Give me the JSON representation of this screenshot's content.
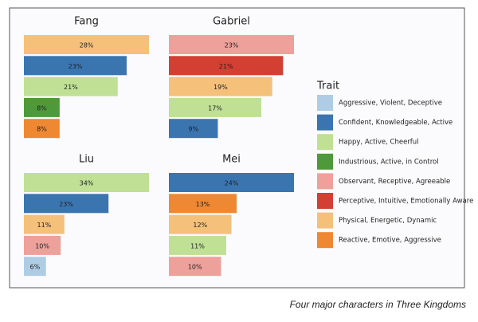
{
  "chart_data": [
    {
      "type": "bar",
      "orientation": "horizontal",
      "title": "Fang",
      "values": [
        28,
        23,
        21,
        8,
        8
      ],
      "value_labels": [
        "28%",
        "23%",
        "21%",
        "8%",
        "8%"
      ],
      "colors": [
        "#f4c07a",
        "#3a75b0",
        "#bfe095",
        "#4e9a3a",
        "#ee8833"
      ]
    },
    {
      "type": "bar",
      "orientation": "horizontal",
      "title": "Gabriel",
      "values": [
        23,
        21,
        19,
        17,
        9
      ],
      "value_labels": [
        "23%",
        "21%",
        "19%",
        "17%",
        "9%"
      ],
      "colors": [
        "#eea09a",
        "#d33f32",
        "#f4c07a",
        "#bfe095",
        "#3a75b0"
      ]
    },
    {
      "type": "bar",
      "orientation": "horizontal",
      "title": "Liu",
      "values": [
        34,
        23,
        11,
        10,
        6
      ],
      "value_labels": [
        "34%",
        "23%",
        "11%",
        "10%",
        "6%"
      ],
      "colors": [
        "#bfe095",
        "#3a75b0",
        "#f4c07a",
        "#eea09a",
        "#aecde4"
      ]
    },
    {
      "type": "bar",
      "orientation": "horizontal",
      "title": "Mei",
      "values": [
        24,
        13,
        12,
        11,
        10
      ],
      "value_labels": [
        "24%",
        "13%",
        "12%",
        "11%",
        "10%"
      ],
      "colors": [
        "#3a75b0",
        "#ee8833",
        "#f4c07a",
        "#bfe095",
        "#eea09a"
      ]
    }
  ],
  "legend": {
    "title": "Trait",
    "items": [
      {
        "name": "Aggressive, Violent, Deceptive",
        "color": "#aecde4"
      },
      {
        "name": "Confident, Knowledgeable, Active",
        "color": "#3a75b0"
      },
      {
        "name": "Happy, Active, Cheerful",
        "color": "#bfe095"
      },
      {
        "name": "Industrious, Active, in Control",
        "color": "#4e9a3a"
      },
      {
        "name": "Observant, Receptive, Agreeable",
        "color": "#eea09a"
      },
      {
        "name": "Perceptive, Intuitive, Emotionally Aware",
        "color": "#d33f32"
      },
      {
        "name": "Physical, Energetic, Dynamic",
        "color": "#f4c07a"
      },
      {
        "name": "Reactive, Emotive, Aggressive",
        "color": "#ee8833"
      }
    ]
  },
  "caption": "Four major characters in Three Kingdoms"
}
